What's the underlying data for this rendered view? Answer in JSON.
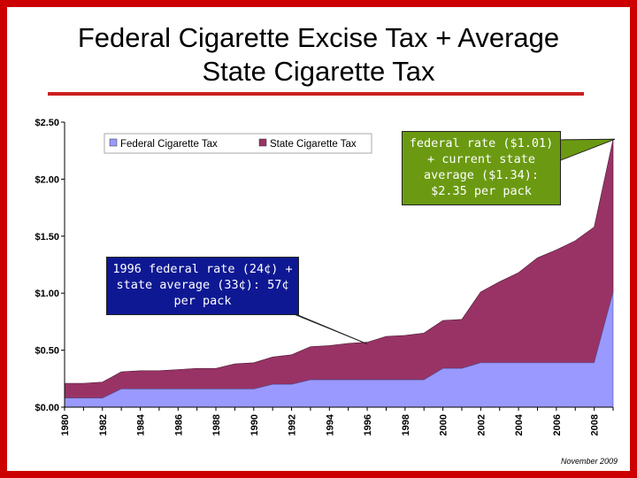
{
  "slide": {
    "title_line1": "Federal Cigarette Excise Tax + Average",
    "title_line2": "State Cigarette Tax",
    "date_stamp": "November 2009"
  },
  "colors": {
    "frame": "#cc0000",
    "federal": "#9999ff",
    "state": "#993366",
    "rule": "#cc1f1f",
    "note_2009": "#6b9a12",
    "note_1996": "#0e1893"
  },
  "annotations": {
    "note_2009": "federal rate ($1.01) + current state average ($1.34): $2.35 per pack",
    "note_1996": "1996 federal rate (24¢) + state average (33¢): 57¢ per pack"
  },
  "chart_data": {
    "type": "area",
    "stacked": true,
    "title": "Federal Cigarette Excise Tax + Average State Cigarette Tax",
    "xlabel": "",
    "ylabel": "",
    "x": [
      1980,
      1981,
      1982,
      1983,
      1984,
      1985,
      1986,
      1987,
      1988,
      1989,
      1990,
      1991,
      1992,
      1993,
      1994,
      1995,
      1996,
      1997,
      1998,
      1999,
      2000,
      2001,
      2002,
      2003,
      2004,
      2005,
      2006,
      2007,
      2008,
      2009
    ],
    "series": [
      {
        "name": "Federal Cigarette Tax",
        "values": [
          0.08,
          0.08,
          0.08,
          0.16,
          0.16,
          0.16,
          0.16,
          0.16,
          0.16,
          0.16,
          0.16,
          0.2,
          0.2,
          0.24,
          0.24,
          0.24,
          0.24,
          0.24,
          0.24,
          0.24,
          0.34,
          0.34,
          0.39,
          0.39,
          0.39,
          0.39,
          0.39,
          0.39,
          0.39,
          1.01
        ]
      },
      {
        "name": "State Cigarette Tax",
        "values": [
          0.13,
          0.13,
          0.14,
          0.15,
          0.16,
          0.16,
          0.17,
          0.18,
          0.18,
          0.22,
          0.23,
          0.24,
          0.26,
          0.29,
          0.3,
          0.32,
          0.33,
          0.38,
          0.39,
          0.41,
          0.42,
          0.43,
          0.62,
          0.71,
          0.79,
          0.92,
          0.99,
          1.07,
          1.19,
          1.34
        ]
      }
    ],
    "ylim": [
      0,
      2.5
    ],
    "y_ticks": [
      0,
      0.5,
      1.0,
      1.5,
      2.0,
      2.5
    ],
    "y_tick_labels": [
      "$0.00",
      "$0.50",
      "$1.00",
      "$1.50",
      "$2.00",
      "$2.50"
    ],
    "x_tick_labels": [
      "1980",
      "1982",
      "1984",
      "1986",
      "1988",
      "1990",
      "1992",
      "1994",
      "1996",
      "1998",
      "2000",
      "2002",
      "2004",
      "2006",
      "2008"
    ],
    "legend": {
      "position": "top-left",
      "labels": [
        "Federal Cigarette Tax",
        "State Cigarette Tax"
      ]
    },
    "grid": false
  }
}
